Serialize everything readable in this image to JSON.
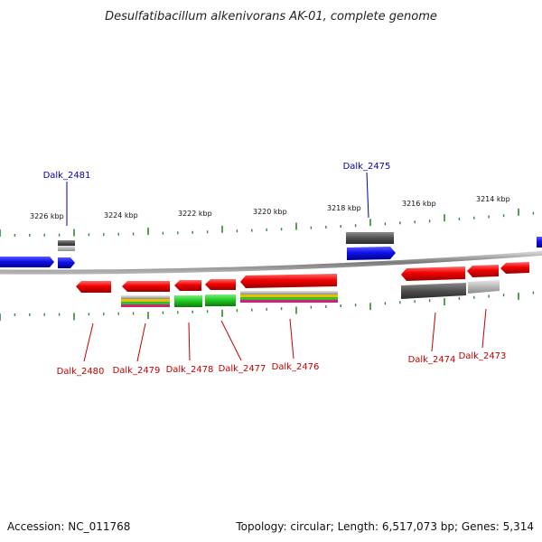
{
  "title": "Desulfatibacillum alkenivorans AK-01, complete genome",
  "footer": {
    "accession": "Accession: NC_011768",
    "summary": "Topology: circular; Length: 6,517,073 bp; Genes: 5,314"
  },
  "colors": {
    "forward_gene": "#1010e0",
    "reverse_gene": "#e00000",
    "forward_label": "#0000b0",
    "reverse_label": "#c00000",
    "tick": "#2e8b2e",
    "backbone": "#8a8a8a"
  },
  "scale_labels": [
    "3226 kbp",
    "3224 kbp",
    "3222 kbp",
    "3220 kbp",
    "3218 kbp",
    "3216 kbp",
    "3214 kbp"
  ],
  "gene_labels": [
    {
      "name": "Dalk_2481",
      "strand": "forward"
    },
    {
      "name": "Dalk_2475",
      "strand": "forward"
    },
    {
      "name": "Dalk_2480",
      "strand": "reverse"
    },
    {
      "name": "Dalk_2479",
      "strand": "reverse"
    },
    {
      "name": "Dalk_2478",
      "strand": "reverse"
    },
    {
      "name": "Dalk_2477",
      "strand": "reverse"
    },
    {
      "name": "Dalk_2476",
      "strand": "reverse"
    },
    {
      "name": "Dalk_2474",
      "strand": "reverse"
    },
    {
      "name": "Dalk_2473",
      "strand": "reverse"
    }
  ]
}
